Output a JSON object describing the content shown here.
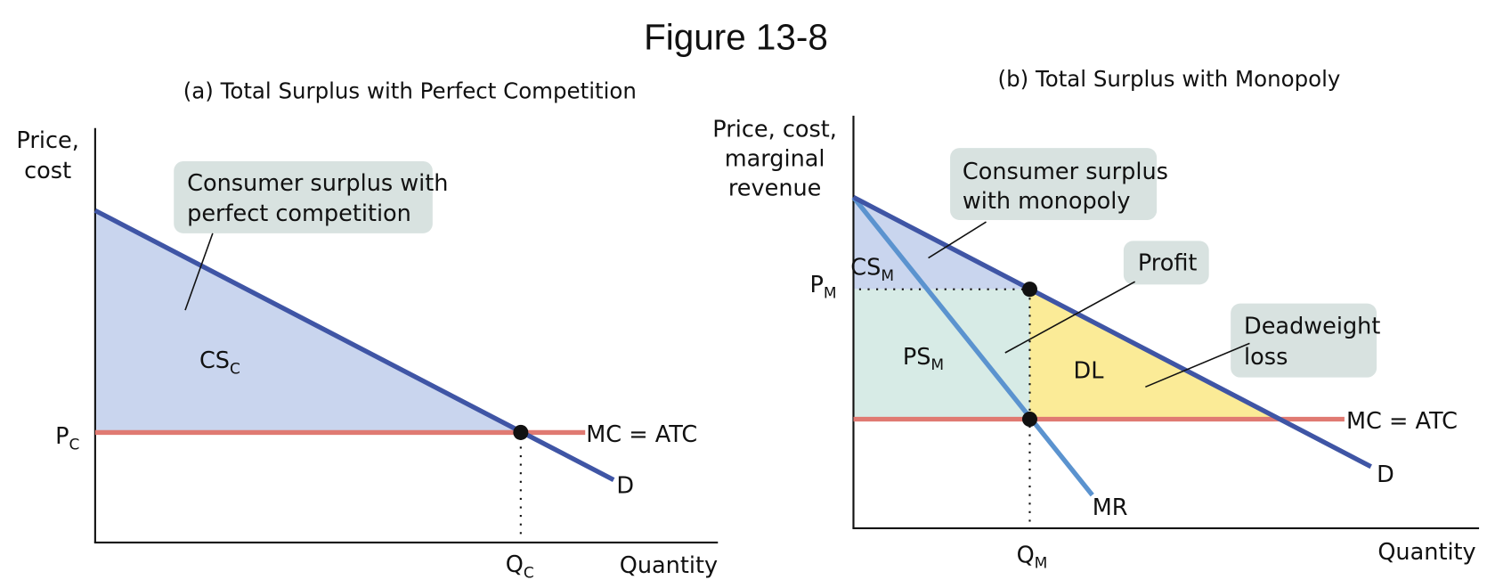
{
  "title": "Figure 13-8",
  "panels": [
    {
      "title": "(a) Total Surplus with Perfect Competition",
      "y_axis_label": [
        "Price,",
        "cost"
      ],
      "x_axis_label": "Quantity",
      "price_label": {
        "main": "P",
        "sub": "C"
      },
      "quantity_label": {
        "main": "Q",
        "sub": "C"
      },
      "curves": [
        "MC = ATC",
        "D"
      ],
      "areas": [
        {
          "main": "CS",
          "sub": "C"
        }
      ],
      "callouts": [
        [
          "Consumer surplus with",
          "perfect competition"
        ]
      ]
    },
    {
      "title": "(b) Total Surplus with Monopoly",
      "y_axis_label": [
        "Price, cost,",
        "marginal",
        "revenue"
      ],
      "x_axis_label": "Quantity",
      "price_label": {
        "main": "P",
        "sub": "M"
      },
      "quantity_label": {
        "main": "Q",
        "sub": "M"
      },
      "curves": [
        "MC = ATC",
        "D",
        "MR"
      ],
      "areas": [
        {
          "main": "CS",
          "sub": "M"
        },
        {
          "main": "PS",
          "sub": "M"
        },
        "DL"
      ],
      "callouts": [
        [
          "Consumer surplus",
          "with monopoly"
        ],
        [
          "Profit"
        ],
        [
          "Deadweight",
          "loss"
        ]
      ]
    }
  ]
}
